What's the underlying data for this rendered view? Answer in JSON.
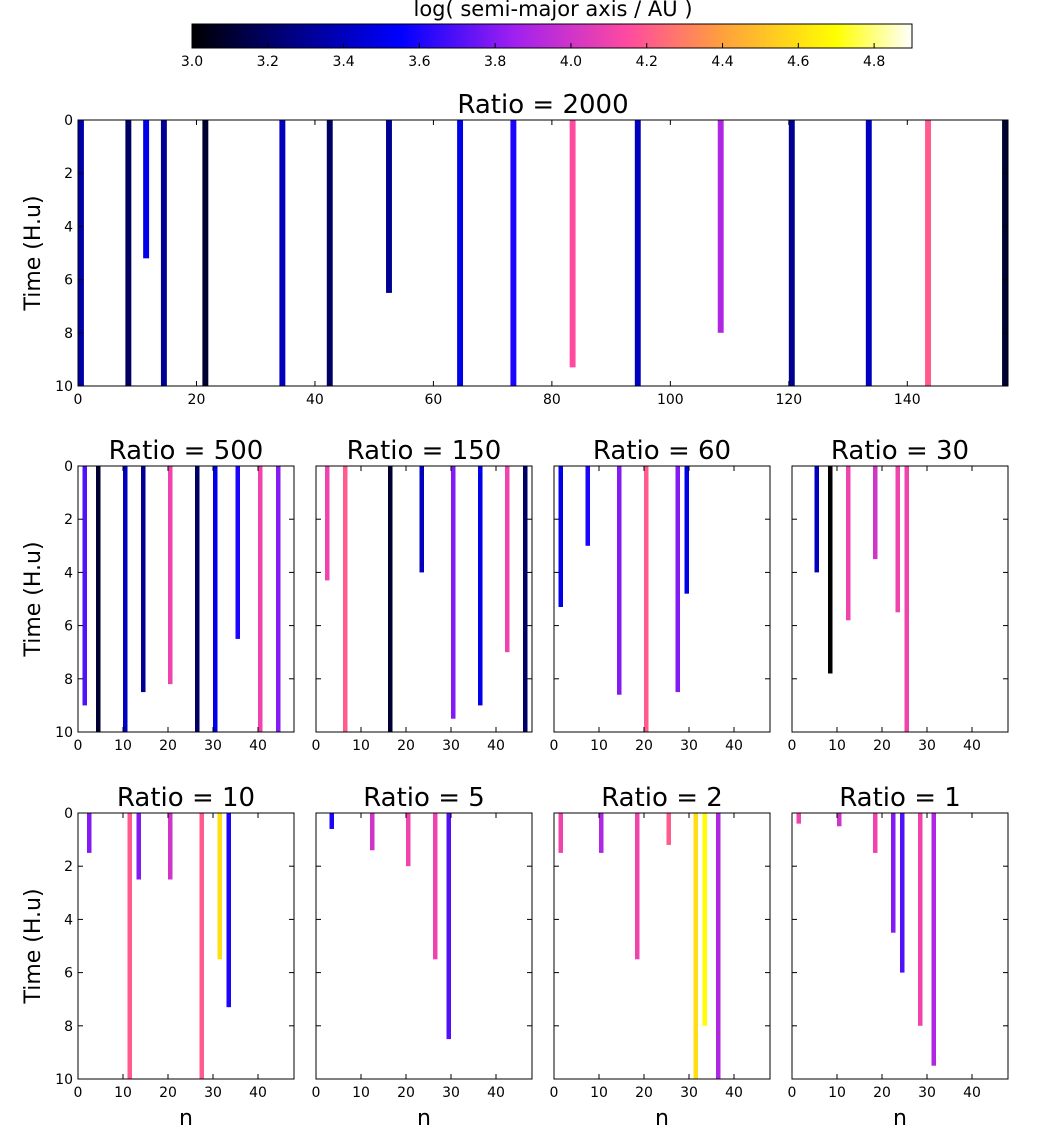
{
  "colorbar": {
    "label": "log( semi-major axis / AU )",
    "min": 3.0,
    "max": 4.9,
    "ticks": [
      "3.0",
      "3.2",
      "3.4",
      "3.6",
      "3.8",
      "4.0",
      "4.2",
      "4.4",
      "4.6",
      "4.8"
    ],
    "colormap": "gnuplot2",
    "stops": [
      {
        "v": 3.0,
        "color": "#000000"
      },
      {
        "v": 3.25,
        "color": "#00007d"
      },
      {
        "v": 3.55,
        "color": "#0000ff"
      },
      {
        "v": 3.85,
        "color": "#a020f0"
      },
      {
        "v": 4.15,
        "color": "#ff4aa0"
      },
      {
        "v": 4.4,
        "color": "#ffa03c"
      },
      {
        "v": 4.7,
        "color": "#ffff00"
      },
      {
        "v": 4.9,
        "color": "#ffffff"
      }
    ]
  },
  "chart_data": [
    {
      "type": "heatmap",
      "title": "Ratio = 2000",
      "ylabel": "Time (H.u)",
      "xlabel": "",
      "xlim": [
        0,
        157
      ],
      "ylim": [
        10,
        0
      ],
      "xticks": [
        0,
        20,
        40,
        60,
        80,
        100,
        120,
        140
      ],
      "yticks": [
        0,
        2,
        4,
        6,
        8,
        10
      ],
      "columns": [
        {
          "x": 0,
          "t_end": 10,
          "value": 3.35
        },
        {
          "x": 8,
          "t_end": 10,
          "value": 3.2
        },
        {
          "x": 11,
          "t_end": 5.2,
          "value": 3.5
        },
        {
          "x": 14,
          "t_end": 10,
          "value": 3.3
        },
        {
          "x": 21,
          "t_end": 10,
          "value": 3.1
        },
        {
          "x": 34,
          "t_end": 10,
          "value": 3.4
        },
        {
          "x": 42,
          "t_end": 10,
          "value": 3.2
        },
        {
          "x": 52,
          "t_end": 6.5,
          "value": 3.3
        },
        {
          "x": 64,
          "t_end": 10,
          "value": 3.5
        },
        {
          "x": 73,
          "t_end": 10,
          "value": 3.6
        },
        {
          "x": 83,
          "t_end": 9.3,
          "value": 4.15
        },
        {
          "x": 94,
          "t_end": 10,
          "value": 3.4
        },
        {
          "x": 108,
          "t_end": 8.0,
          "value": 3.9
        },
        {
          "x": 120,
          "t_end": 10,
          "value": 3.3
        },
        {
          "x": 133,
          "t_end": 10,
          "value": 3.4
        },
        {
          "x": 143,
          "t_end": 10,
          "value": 4.2
        },
        {
          "x": 156,
          "t_end": 10,
          "value": 3.1
        }
      ]
    },
    {
      "type": "heatmap",
      "title": "Ratio = 500",
      "ylabel": "Time (H.u)",
      "xlabel": "",
      "xlim": [
        0,
        48
      ],
      "ylim": [
        10,
        0
      ],
      "xticks": [
        0,
        10,
        20,
        30,
        40
      ],
      "yticks": [
        0,
        2,
        4,
        6,
        8,
        10
      ],
      "columns": [
        {
          "x": 1,
          "t_end": 9.0,
          "value": 3.7
        },
        {
          "x": 4,
          "t_end": 10,
          "value": 3.1
        },
        {
          "x": 10,
          "t_end": 10,
          "value": 3.4
        },
        {
          "x": 14,
          "t_end": 8.5,
          "value": 3.3
        },
        {
          "x": 20,
          "t_end": 8.2,
          "value": 4.1
        },
        {
          "x": 26,
          "t_end": 10,
          "value": 3.2
        },
        {
          "x": 30,
          "t_end": 10,
          "value": 3.5
        },
        {
          "x": 35,
          "t_end": 6.5,
          "value": 3.6
        },
        {
          "x": 40,
          "t_end": 10,
          "value": 4.1
        },
        {
          "x": 44,
          "t_end": 10,
          "value": 3.8
        }
      ]
    },
    {
      "type": "heatmap",
      "title": "Ratio = 150",
      "ylabel": "",
      "xlabel": "",
      "xlim": [
        0,
        48
      ],
      "ylim": [
        10,
        0
      ],
      "xticks": [
        0,
        10,
        20,
        30,
        40
      ],
      "yticks": [
        0,
        2,
        4,
        6,
        8,
        10
      ],
      "columns": [
        {
          "x": 2,
          "t_end": 4.3,
          "value": 4.1
        },
        {
          "x": 6,
          "t_end": 10,
          "value": 4.2
        },
        {
          "x": 16,
          "t_end": 10,
          "value": 3.1
        },
        {
          "x": 23,
          "t_end": 4.0,
          "value": 3.4
        },
        {
          "x": 30,
          "t_end": 9.5,
          "value": 3.8
        },
        {
          "x": 36,
          "t_end": 9.0,
          "value": 3.5
        },
        {
          "x": 42,
          "t_end": 7.0,
          "value": 4.1
        },
        {
          "x": 46,
          "t_end": 10,
          "value": 3.2
        }
      ]
    },
    {
      "type": "heatmap",
      "title": "Ratio = 60",
      "ylabel": "",
      "xlabel": "",
      "xlim": [
        0,
        48
      ],
      "ylim": [
        10,
        0
      ],
      "xticks": [
        0,
        10,
        20,
        30,
        40
      ],
      "yticks": [
        0,
        2,
        4,
        6,
        8,
        10
      ],
      "columns": [
        {
          "x": 1,
          "t_end": 5.3,
          "value": 3.5
        },
        {
          "x": 7,
          "t_end": 3.0,
          "value": 3.6
        },
        {
          "x": 14,
          "t_end": 8.6,
          "value": 3.8
        },
        {
          "x": 20,
          "t_end": 10,
          "value": 4.2
        },
        {
          "x": 27,
          "t_end": 8.5,
          "value": 3.8
        },
        {
          "x": 29,
          "t_end": 4.8,
          "value": 3.5
        }
      ]
    },
    {
      "type": "heatmap",
      "title": "Ratio = 30",
      "ylabel": "",
      "xlabel": "",
      "xlim": [
        0,
        48
      ],
      "ylim": [
        10,
        0
      ],
      "xticks": [
        0,
        10,
        20,
        30,
        40
      ],
      "yticks": [
        0,
        2,
        4,
        6,
        8,
        10
      ],
      "columns": [
        {
          "x": 5,
          "t_end": 4.0,
          "value": 3.4
        },
        {
          "x": 8,
          "t_end": 7.8,
          "value": 3.0
        },
        {
          "x": 12,
          "t_end": 5.8,
          "value": 4.1
        },
        {
          "x": 18,
          "t_end": 3.5,
          "value": 4.0
        },
        {
          "x": 23,
          "t_end": 5.5,
          "value": 4.1
        },
        {
          "x": 25,
          "t_end": 10,
          "value": 4.1
        }
      ]
    },
    {
      "type": "heatmap",
      "title": "Ratio = 10",
      "ylabel": "Time (H.u)",
      "xlabel": "n",
      "xlim": [
        0,
        48
      ],
      "ylim": [
        10,
        0
      ],
      "xticks": [
        0,
        10,
        20,
        30,
        40
      ],
      "yticks": [
        0,
        2,
        4,
        6,
        8,
        10
      ],
      "columns": [
        {
          "x": 2,
          "t_end": 1.5,
          "value": 3.8
        },
        {
          "x": 11,
          "t_end": 10,
          "value": 4.2
        },
        {
          "x": 13,
          "t_end": 2.5,
          "value": 3.8
        },
        {
          "x": 20,
          "t_end": 2.5,
          "value": 4.0
        },
        {
          "x": 27,
          "t_end": 10,
          "value": 4.2
        },
        {
          "x": 31,
          "t_end": 5.5,
          "value": 4.6
        },
        {
          "x": 33,
          "t_end": 7.3,
          "value": 3.6
        }
      ]
    },
    {
      "type": "heatmap",
      "title": "Ratio = 5",
      "ylabel": "",
      "xlabel": "n",
      "xlim": [
        0,
        48
      ],
      "ylim": [
        10,
        0
      ],
      "xticks": [
        0,
        10,
        20,
        30,
        40
      ],
      "yticks": [
        0,
        2,
        4,
        6,
        8,
        10
      ],
      "columns": [
        {
          "x": 3,
          "t_end": 0.6,
          "value": 3.6
        },
        {
          "x": 12,
          "t_end": 1.4,
          "value": 4.0
        },
        {
          "x": 20,
          "t_end": 2.0,
          "value": 4.1
        },
        {
          "x": 26,
          "t_end": 5.5,
          "value": 4.1
        },
        {
          "x": 29,
          "t_end": 8.5,
          "value": 3.7
        }
      ]
    },
    {
      "type": "heatmap",
      "title": "Ratio = 2",
      "ylabel": "",
      "xlabel": "n",
      "xlim": [
        0,
        48
      ],
      "ylim": [
        10,
        0
      ],
      "xticks": [
        0,
        10,
        20,
        30,
        40
      ],
      "yticks": [
        0,
        2,
        4,
        6,
        8,
        10
      ],
      "columns": [
        {
          "x": 1,
          "t_end": 1.5,
          "value": 4.1
        },
        {
          "x": 10,
          "t_end": 1.5,
          "value": 3.9
        },
        {
          "x": 18,
          "t_end": 5.5,
          "value": 4.1
        },
        {
          "x": 25,
          "t_end": 1.2,
          "value": 4.2
        },
        {
          "x": 31,
          "t_end": 10,
          "value": 4.6
        },
        {
          "x": 33,
          "t_end": 8.0,
          "value": 4.7
        },
        {
          "x": 36,
          "t_end": 10,
          "value": 3.9
        }
      ]
    },
    {
      "type": "heatmap",
      "title": "Ratio = 1",
      "ylabel": "",
      "xlabel": "n",
      "xlim": [
        0,
        48
      ],
      "ylim": [
        10,
        0
      ],
      "xticks": [
        0,
        10,
        20,
        30,
        40
      ],
      "yticks": [
        0,
        2,
        4,
        6,
        8,
        10
      ],
      "columns": [
        {
          "x": 1,
          "t_end": 0.4,
          "value": 4.1
        },
        {
          "x": 10,
          "t_end": 0.5,
          "value": 4.0
        },
        {
          "x": 18,
          "t_end": 1.5,
          "value": 4.1
        },
        {
          "x": 22,
          "t_end": 4.5,
          "value": 3.8
        },
        {
          "x": 24,
          "t_end": 6.0,
          "value": 3.7
        },
        {
          "x": 28,
          "t_end": 8.0,
          "value": 4.1
        },
        {
          "x": 31,
          "t_end": 9.5,
          "value": 3.9
        }
      ]
    }
  ]
}
